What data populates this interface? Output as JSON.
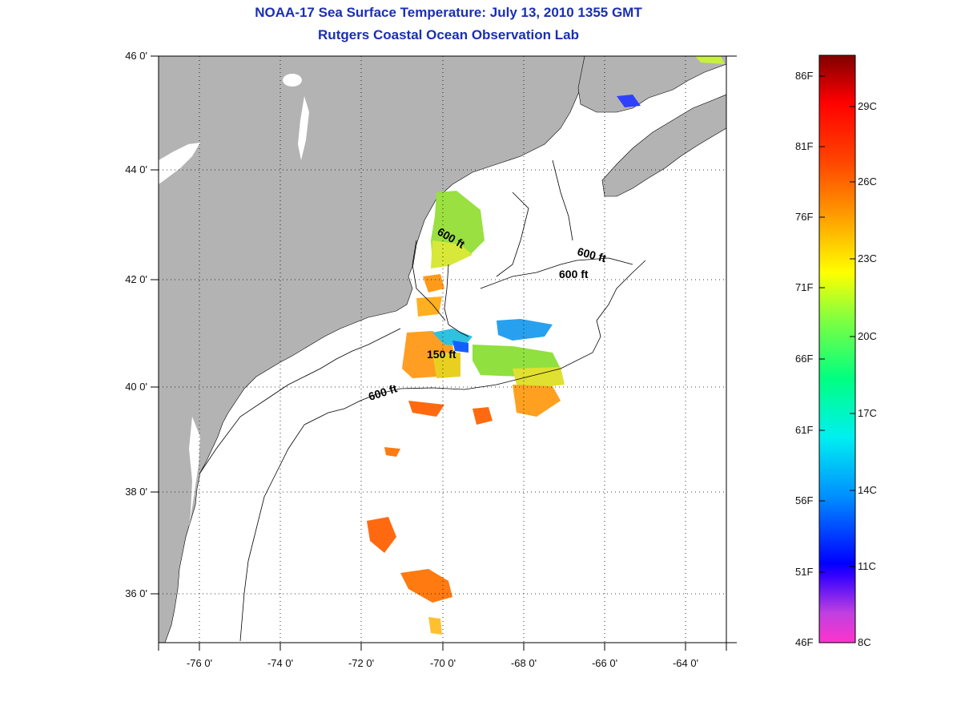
{
  "title": {
    "line1": "NOAA-17 Sea Surface Temperature:  July 13, 2010 1355 GMT",
    "line2": "Rutgers Coastal Ocean Observation Lab"
  },
  "map": {
    "lat_labels": [
      "46 0'",
      "44 0'",
      "42 0'",
      "40 0'",
      "38 0'",
      "36 0'"
    ],
    "lon_labels": [
      "-76 0'",
      "-74 0'",
      "-72 0'",
      "-70 0'",
      "-68 0'",
      "-66 0'",
      "-64 0'"
    ],
    "contour_labels": [
      "600 ft",
      "600 ft",
      "600 ft",
      "150 ft",
      "600 ft"
    ],
    "land_color": "#b3b3b3",
    "ocean_color": "#ffffff"
  },
  "colorbar": {
    "fahrenheit": [
      "86F",
      "81F",
      "76F",
      "71F",
      "66F",
      "61F",
      "56F",
      "51F",
      "46F"
    ],
    "celsius": [
      "29C",
      "26C",
      "23C",
      "20C",
      "17C",
      "14C",
      "11C",
      "8C"
    ]
  }
}
